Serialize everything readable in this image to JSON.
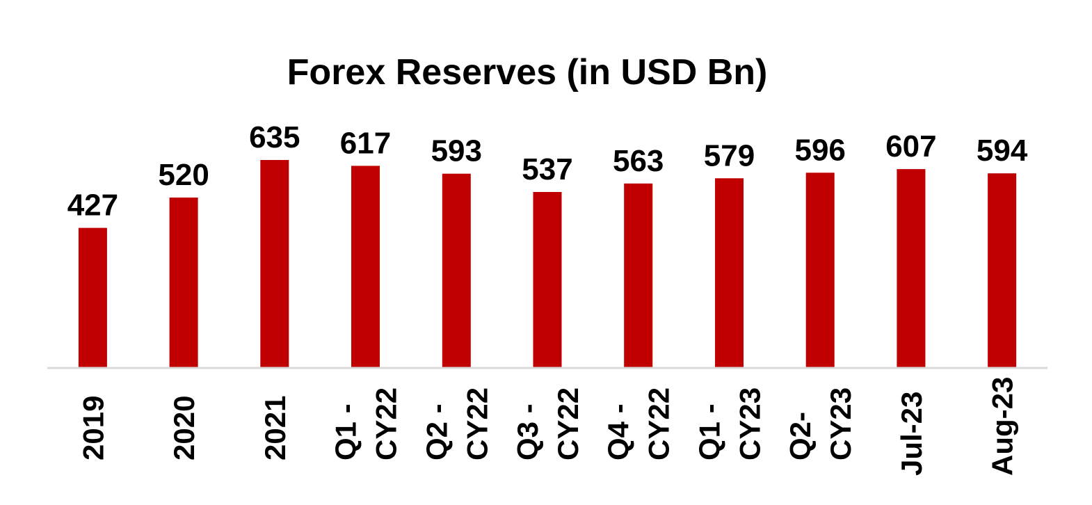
{
  "chart_data": {
    "type": "bar",
    "title": "Forex Reserves (in USD Bn)",
    "categories": [
      "2019",
      "2020",
      "2021",
      "Q1 - CY22",
      "Q2 - CY22",
      "Q3 - CY22",
      "Q4 - CY22",
      "Q1 - CY23",
      "Q2- CY23",
      "Jul-23",
      "Aug-23"
    ],
    "category_lines": [
      [
        "2019"
      ],
      [
        "2020"
      ],
      [
        "2021"
      ],
      [
        "Q1 -",
        "CY22"
      ],
      [
        "Q2 -",
        "CY22"
      ],
      [
        "Q3 -",
        "CY22"
      ],
      [
        "Q4 -",
        "CY22"
      ],
      [
        "Q1 -",
        "CY23"
      ],
      [
        "Q2-",
        "CY23"
      ],
      [
        "Jul-23"
      ],
      [
        "Aug-23"
      ]
    ],
    "values": [
      427,
      520,
      635,
      617,
      593,
      537,
      563,
      579,
      596,
      607,
      594
    ],
    "value_labels": [
      "427",
      "520",
      "635",
      "617",
      "593",
      "537",
      "563",
      "579",
      "596",
      "607",
      "594"
    ],
    "bar_color": "#C00000",
    "axis_color": "#D9D9D9",
    "xlabel": "",
    "ylabel": "",
    "ylim": [
      0,
      635
    ],
    "grid": false,
    "legend": "none",
    "category_label_orientation": "vertical"
  }
}
